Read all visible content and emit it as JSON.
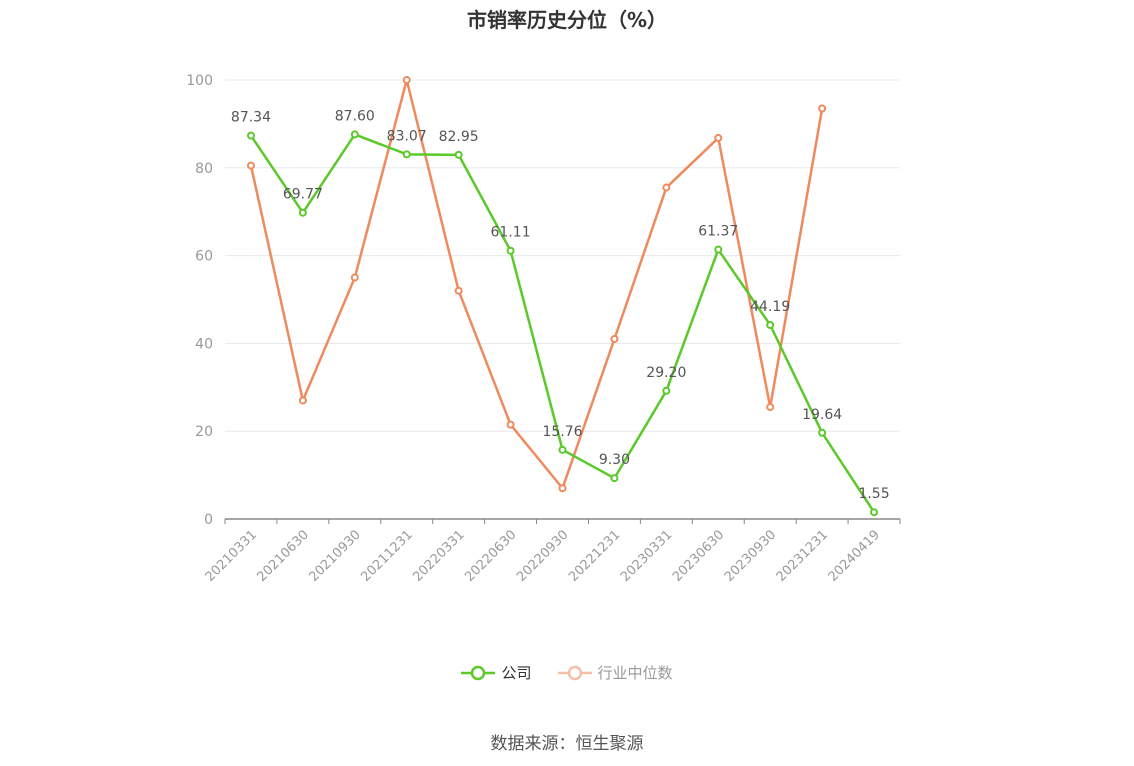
{
  "title": "市销率历史分位（%）",
  "source_text": "数据来源：恒生聚源",
  "colors": {
    "company": "#5BC92A",
    "industry": "#EE8A5B",
    "grid": "#E6E8F0",
    "axis": "#888888",
    "tick_text": "#999999",
    "label_text": "#555555"
  },
  "chart_data": {
    "type": "line",
    "title": "市销率历史分位（%）",
    "xlabel": "",
    "ylabel": "",
    "ylim": [
      0,
      100
    ],
    "yticks": [
      0,
      20,
      40,
      60,
      80,
      100
    ],
    "grid": true,
    "legend_position": "bottom-center",
    "categories": [
      "20210331",
      "20210630",
      "20210930",
      "20211231",
      "20220331",
      "20220630",
      "20220930",
      "20221231",
      "20230331",
      "20230630",
      "20230930",
      "20231231",
      "20240419"
    ],
    "series": [
      {
        "name": "公司",
        "color": "#5BC92A",
        "show_labels": true,
        "values": [
          87.34,
          69.77,
          87.6,
          83.07,
          82.95,
          61.11,
          15.76,
          9.3,
          29.2,
          61.37,
          44.19,
          19.64,
          1.55
        ]
      },
      {
        "name": "行业中位数",
        "color": "#EE8A5B",
        "show_labels": false,
        "values": [
          80.5,
          27.0,
          55.0,
          100.0,
          52.0,
          21.5,
          7.0,
          41.0,
          75.5,
          86.8,
          25.5,
          93.5,
          null
        ]
      }
    ]
  }
}
